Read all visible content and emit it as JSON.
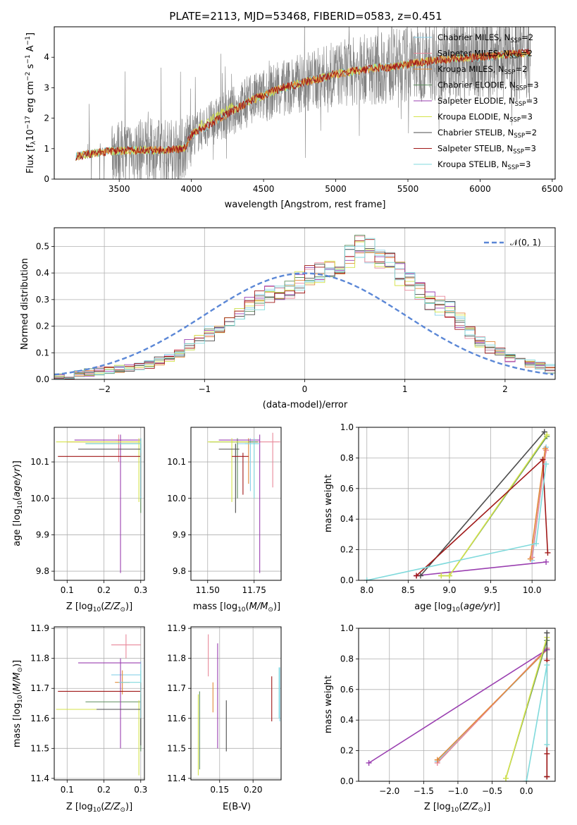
{
  "figure_title": "PLATE=2113, MJD=53468, FIBERID=0583, z=0.451",
  "colors": {
    "Chabrier MILES": "#8ad0e8",
    "Salpeter MILES": "#e8889a",
    "Kroupa MILES": "#e28a3a",
    "Chabrier ELODIE": "#5f8f5f",
    "Salpeter ELODIE": "#9a3fb0",
    "Kroupa ELODIE": "#d4e34a",
    "Chabrier STELIB": "#4d4d4d",
    "Salpeter STELIB": "#a01818",
    "Kroupa STELIB": "#80dadc",
    "data": "#808080",
    "normal": "#5b87d6",
    "grid": "#b0b0b0"
  },
  "chart_data": [
    {
      "id": "spectrum",
      "type": "line",
      "xlabel": "wavelength [Angstrom, rest frame]",
      "ylabel": "Flux [f_λ10^-17 erg cm^-2 s^-1 A^-1]",
      "xlim": [
        3050,
        6520
      ],
      "ylim": [
        0,
        5
      ],
      "xticks": [
        3500,
        4000,
        4500,
        5000,
        5500,
        6000,
        6500
      ],
      "yticks": [
        0,
        1,
        2,
        3,
        4
      ],
      "grid": false,
      "legend_position": "top-right",
      "legend": [
        {
          "label": "Chabrier MILES, N",
          "sub": "SSP",
          "suffix": "=2"
        },
        {
          "label": "Salpeter MILES, N",
          "sub": "SSP",
          "suffix": "=2"
        },
        {
          "label": "Kroupa MILES, N",
          "sub": "SSP",
          "suffix": "=2"
        },
        {
          "label": "Chabrier ELODIE, N",
          "sub": "SSP",
          "suffix": "=3"
        },
        {
          "label": "Salpeter ELODIE, N",
          "sub": "SSP",
          "suffix": "=3"
        },
        {
          "label": "Kroupa ELODIE, N",
          "sub": "SSP",
          "suffix": "=3"
        },
        {
          "label": "Chabrier STELIB, N",
          "sub": "SSP",
          "suffix": "=2"
        },
        {
          "label": "Salpeter STELIB, N",
          "sub": "SSP",
          "suffix": "=3"
        },
        {
          "label": "Kroupa STELIB, N",
          "sub": "SSP",
          "suffix": "=3"
        }
      ],
      "continuum": {
        "x": [
          3200,
          3400,
          3600,
          3800,
          3950,
          4000,
          4200,
          4400,
          4600,
          4800,
          5000,
          5200,
          5400,
          5600,
          5800,
          6000,
          6200,
          6350
        ],
        "y": [
          0.75,
          0.9,
          0.95,
          0.95,
          1.0,
          1.45,
          2.0,
          2.55,
          2.95,
          3.2,
          3.45,
          3.6,
          3.7,
          3.85,
          3.95,
          4.0,
          4.1,
          4.15
        ]
      }
    },
    {
      "id": "residuals",
      "type": "step",
      "xlabel": "(data-model)/error",
      "ylabel": "Normed distribution",
      "xlim": [
        -2.5,
        2.5
      ],
      "ylim": [
        0,
        0.57
      ],
      "xticks": [
        -2,
        -1,
        0,
        1,
        2
      ],
      "yticks": [
        0.0,
        0.1,
        0.2,
        0.3,
        0.4,
        0.5
      ],
      "grid": true,
      "legend_position": "top-right",
      "normal_label": "𝒩(0, 1)",
      "bin_edges_start": -2.5,
      "bin_width": 0.1,
      "base_hist": [
        0.01,
        0.015,
        0.02,
        0.025,
        0.03,
        0.035,
        0.04,
        0.045,
        0.05,
        0.06,
        0.07,
        0.08,
        0.1,
        0.13,
        0.15,
        0.17,
        0.19,
        0.22,
        0.25,
        0.28,
        0.3,
        0.32,
        0.33,
        0.34,
        0.36,
        0.38,
        0.4,
        0.42,
        0.44,
        0.47,
        0.5,
        0.48,
        0.46,
        0.44,
        0.4,
        0.38,
        0.33,
        0.3,
        0.28,
        0.26,
        0.22,
        0.18,
        0.14,
        0.12,
        0.1,
        0.08,
        0.07,
        0.06,
        0.05,
        0.04
      ]
    },
    {
      "id": "age_vs_Z",
      "type": "errorbar",
      "xlabel": "Z [log10(Z/Z☉)]",
      "ylabel": "age [log10(age/yr)]",
      "xlim": [
        0.065,
        0.31
      ],
      "ylim": [
        9.775,
        10.195
      ],
      "xticks": [
        0.1,
        0.2,
        0.3
      ],
      "yticks": [
        9.8,
        9.9,
        10.0,
        10.1
      ],
      "grid": true,
      "points": [
        {
          "s": "Chabrier MILES",
          "x": 0.3,
          "y": 10.15,
          "xl": 0.3,
          "xh": 0.3,
          "yl": 10.0,
          "yh": 10.165
        },
        {
          "s": "Salpeter MILES",
          "x": 0.24,
          "y": 10.16,
          "xl": 0.23,
          "xh": 0.25,
          "yl": 10.1,
          "yh": 10.175
        },
        {
          "s": "Kroupa MILES",
          "x": 0.3,
          "y": 10.155,
          "xl": 0.1,
          "xh": 0.3,
          "yl": 10.05,
          "yh": 10.165
        },
        {
          "s": "Chabrier ELODIE",
          "x": 0.3,
          "y": 10.15,
          "xl": 0.15,
          "xh": 0.3,
          "yl": 9.96,
          "yh": 10.165
        },
        {
          "s": "Salpeter ELODIE",
          "x": 0.245,
          "y": 10.16,
          "xl": 0.12,
          "xh": 0.3,
          "yl": 9.795,
          "yh": 10.175
        },
        {
          "s": "Kroupa ELODIE",
          "x": 0.295,
          "y": 10.155,
          "xl": 0.07,
          "xh": 0.3,
          "yl": 9.99,
          "yh": 10.165
        },
        {
          "s": "Chabrier STELIB",
          "x": 0.3,
          "y": 10.135,
          "xl": 0.13,
          "xh": 0.3,
          "yl": 10.0,
          "yh": 10.15
        },
        {
          "s": "Salpeter STELIB",
          "x": 0.3,
          "y": 10.115,
          "xl": 0.075,
          "xh": 0.3,
          "yl": 10.005,
          "yh": 10.125
        },
        {
          "s": "Kroupa STELIB",
          "x": 0.3,
          "y": 10.15,
          "xl": 0.15,
          "xh": 0.3,
          "yl": 10.0,
          "yh": 10.165
        }
      ]
    },
    {
      "id": "age_vs_mass",
      "type": "errorbar",
      "xlabel": "mass [log10(M/M☉)]",
      "ylabel": "",
      "xlim": [
        11.41,
        11.895
      ],
      "ylim": [
        9.775,
        10.195
      ],
      "xticks": [
        11.5,
        11.75
      ],
      "xticklabels": [
        "11.50",
        "11.75"
      ],
      "yticks": [
        9.8,
        9.9,
        10.0,
        10.1
      ],
      "grid": true,
      "points": [
        {
          "s": "Chabrier MILES",
          "x": 11.73,
          "y": 10.15,
          "xl": 11.66,
          "xh": 11.77,
          "yl": 10.02,
          "yh": 10.165
        },
        {
          "s": "Salpeter MILES",
          "x": 11.85,
          "y": 10.155,
          "xl": 11.77,
          "xh": 11.89,
          "yl": 10.03,
          "yh": 10.18
        },
        {
          "s": "Kroupa MILES",
          "x": 11.72,
          "y": 10.155,
          "xl": 11.63,
          "xh": 11.77,
          "yl": 10.04,
          "yh": 10.165
        },
        {
          "s": "Chabrier ELODIE",
          "x": 11.66,
          "y": 10.155,
          "xl": 11.51,
          "xh": 11.77,
          "yl": 10.0,
          "yh": 10.165
        },
        {
          "s": "Salpeter ELODIE",
          "x": 11.78,
          "y": 10.16,
          "xl": 11.56,
          "xh": 11.78,
          "yl": 9.795,
          "yh": 10.175
        },
        {
          "s": "Kroupa ELODIE",
          "x": 11.63,
          "y": 10.155,
          "xl": 11.5,
          "xh": 11.72,
          "yl": 9.99,
          "yh": 10.165
        },
        {
          "s": "Chabrier STELIB",
          "x": 11.65,
          "y": 10.135,
          "xl": 11.56,
          "xh": 11.67,
          "yl": 9.96,
          "yh": 10.15
        },
        {
          "s": "Salpeter STELIB",
          "x": 11.69,
          "y": 10.115,
          "xl": 11.63,
          "xh": 11.72,
          "yl": 10.01,
          "yh": 10.125
        },
        {
          "s": "Kroupa STELIB",
          "x": 11.75,
          "y": 10.15,
          "xl": 11.7,
          "xh": 11.78,
          "yl": 10.0,
          "yh": 10.165
        }
      ]
    },
    {
      "id": "massweight_vs_age",
      "type": "line",
      "xlabel": "age [log10(age/yr)]",
      "ylabel": "mass weight",
      "xlim": [
        7.9,
        10.28
      ],
      "ylim": [
        0.0,
        1.0
      ],
      "xticks": [
        8.0,
        8.5,
        9.0,
        9.5,
        10.0
      ],
      "yticks": [
        0.0,
        0.2,
        0.4,
        0.6,
        0.8,
        1.0
      ],
      "grid": true,
      "series": [
        {
          "s": "Chabrier MILES",
          "x": [
            10.0,
            10.17
          ],
          "y": [
            0.13,
            0.87
          ]
        },
        {
          "s": "Salpeter MILES",
          "x": [
            10.0,
            10.17
          ],
          "y": [
            0.15,
            0.85
          ]
        },
        {
          "s": "Kroupa MILES",
          "x": [
            9.98,
            10.16
          ],
          "y": [
            0.14,
            0.86
          ]
        },
        {
          "s": "Chabrier ELODIE",
          "x": [
            8.9,
            9.0,
            10.18
          ],
          "y": [
            0.03,
            0.03,
            0.94
          ]
        },
        {
          "s": "Salpeter ELODIE",
          "x": [
            8.6,
            10.17
          ],
          "y": [
            0.03,
            0.12
          ]
        },
        {
          "s": "Kroupa ELODIE",
          "x": [
            8.9,
            9.0,
            10.18
          ],
          "y": [
            0.03,
            0.03,
            0.95
          ]
        },
        {
          "s": "Chabrier STELIB",
          "x": [
            8.65,
            10.15
          ],
          "y": [
            0.03,
            0.97
          ]
        },
        {
          "s": "Salpeter STELIB",
          "x": [
            8.6,
            10.13,
            10.19
          ],
          "y": [
            0.03,
            0.79,
            0.18
          ]
        },
        {
          "s": "Kroupa STELIB",
          "x": [
            8.0,
            10.05,
            10.17
          ],
          "y": [
            0.0,
            0.24,
            0.76
          ]
        }
      ]
    },
    {
      "id": "mass_vs_Z",
      "type": "errorbar",
      "xlabel": "Z [log10(Z/Z☉)]",
      "ylabel": "mass [log10(M/M☉)]",
      "xlim": [
        0.065,
        0.31
      ],
      "ylim": [
        11.395,
        11.905
      ],
      "xticks": [
        0.1,
        0.2,
        0.3
      ],
      "yticks": [
        11.4,
        11.5,
        11.6,
        11.7,
        11.8,
        11.9
      ],
      "grid": true,
      "points": [
        {
          "s": "Chabrier MILES",
          "x": 0.3,
          "y": 11.745,
          "xl": 0.22,
          "xh": 0.3,
          "yl": 11.7,
          "yh": 11.79
        },
        {
          "s": "Salpeter MILES",
          "x": 0.26,
          "y": 11.845,
          "xl": 0.22,
          "xh": 0.3,
          "yl": 11.8,
          "yh": 11.88
        },
        {
          "s": "Kroupa MILES",
          "x": 0.25,
          "y": 11.72,
          "xl": 0.23,
          "xh": 0.27,
          "yl": 11.68,
          "yh": 11.76
        },
        {
          "s": "Chabrier ELODIE",
          "x": 0.3,
          "y": 11.655,
          "xl": 0.15,
          "xh": 0.3,
          "yl": 11.49,
          "yh": 11.68
        },
        {
          "s": "Salpeter ELODIE",
          "x": 0.245,
          "y": 11.785,
          "xl": 0.13,
          "xh": 0.3,
          "yl": 11.5,
          "yh": 11.8
        },
        {
          "s": "Kroupa ELODIE",
          "x": 0.295,
          "y": 11.63,
          "xl": 0.07,
          "xh": 0.3,
          "yl": 11.41,
          "yh": 11.66
        },
        {
          "s": "Chabrier STELIB",
          "x": 0.3,
          "y": 11.63,
          "xl": 0.18,
          "xh": 0.3,
          "yl": 11.51,
          "yh": 11.66
        },
        {
          "s": "Salpeter STELIB",
          "x": 0.3,
          "y": 11.69,
          "xl": 0.075,
          "xh": 0.3,
          "yl": 11.6,
          "yh": 11.72
        },
        {
          "s": "Kroupa STELIB",
          "x": 0.3,
          "y": 11.72,
          "xl": 0.24,
          "xh": 0.3,
          "yl": 11.6,
          "yh": 11.76
        }
      ]
    },
    {
      "id": "mass_vs_ebv",
      "type": "errorbar",
      "xlabel": "E(B-V)",
      "ylabel": "",
      "xlim": [
        0.107,
        0.242
      ],
      "ylim": [
        11.395,
        11.905
      ],
      "xticks": [
        0.15,
        0.2
      ],
      "xticklabels": [
        "0.15",
        "0.20"
      ],
      "yticks": [
        11.4,
        11.5,
        11.6,
        11.7,
        11.8,
        11.9
      ],
      "grid": true,
      "points": [
        {
          "s": "Chabrier MILES",
          "x": 0.24,
          "y": 11.68,
          "yl": 11.59,
          "yh": 11.77
        },
        {
          "s": "Salpeter MILES",
          "x": 0.133,
          "y": 11.81,
          "yl": 11.74,
          "yh": 11.88
        },
        {
          "s": "Kroupa MILES",
          "x": 0.14,
          "y": 11.67,
          "yl": 11.62,
          "yh": 11.72
        },
        {
          "s": "Chabrier ELODIE",
          "x": 0.12,
          "y": 11.6,
          "yl": 11.43,
          "yh": 11.69
        },
        {
          "s": "Salpeter ELODIE",
          "x": 0.147,
          "y": 11.71,
          "yl": 11.5,
          "yh": 11.85
        },
        {
          "s": "Kroupa ELODIE",
          "x": 0.118,
          "y": 11.55,
          "yl": 11.41,
          "yh": 11.68
        },
        {
          "s": "Chabrier STELIB",
          "x": 0.16,
          "y": 11.58,
          "yl": 11.49,
          "yh": 11.66
        },
        {
          "s": "Salpeter STELIB",
          "x": 0.228,
          "y": 11.67,
          "yl": 11.59,
          "yh": 11.74
        },
        {
          "s": "Kroupa STELIB",
          "x": 0.239,
          "y": 11.68,
          "yl": 11.6,
          "yh": 11.77
        }
      ]
    },
    {
      "id": "massweight_vs_Z",
      "type": "line",
      "xlabel": "Z [log10(Z/Z☉)]",
      "ylabel": "mass weight",
      "xlim": [
        -2.45,
        0.42
      ],
      "ylim": [
        0.0,
        1.0
      ],
      "xticks": [
        -2.0,
        -1.5,
        -1.0,
        -0.5,
        0.0
      ],
      "yticks": [
        0.0,
        0.2,
        0.4,
        0.6,
        0.8,
        1.0
      ],
      "grid": true,
      "series": [
        {
          "s": "Chabrier MILES",
          "x": [
            -1.3,
            0.3
          ],
          "y": [
            0.13,
            0.86
          ]
        },
        {
          "s": "Salpeter MILES",
          "x": [
            -1.3,
            0.3
          ],
          "y": [
            0.12,
            0.87
          ]
        },
        {
          "s": "Kroupa MILES",
          "x": [
            -1.3,
            0.3
          ],
          "y": [
            0.14,
            0.86
          ]
        },
        {
          "s": "Chabrier ELODIE",
          "x": [
            -0.3,
            0.3
          ],
          "y": [
            0.02,
            0.92
          ]
        },
        {
          "s": "Salpeter ELODIE",
          "x": [
            -2.3,
            0.3
          ],
          "y": [
            0.12,
            0.86
          ]
        },
        {
          "s": "Kroupa ELODIE",
          "x": [
            -0.3,
            0.3
          ],
          "y": [
            0.02,
            0.94
          ]
        },
        {
          "s": "Chabrier STELIB",
          "x": [
            0.3,
            0.3
          ],
          "y": [
            0.03,
            0.97
          ]
        },
        {
          "s": "Salpeter STELIB",
          "x": [
            0.3,
            0.3,
            0.3
          ],
          "y": [
            0.03,
            0.18,
            0.79
          ]
        },
        {
          "s": "Kroupa STELIB",
          "x": [
            0.0,
            0.3,
            0.3
          ],
          "y": [
            0.0,
            0.76,
            0.24
          ]
        }
      ]
    }
  ]
}
